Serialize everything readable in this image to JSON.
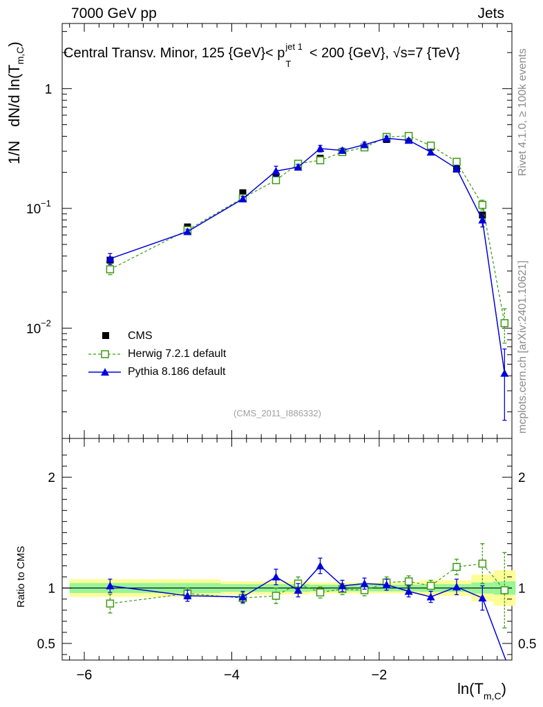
{
  "header": {
    "energy": "7000 GeV pp",
    "category": "Jets"
  },
  "title": {
    "prefix": "Central Transv. Minor, 125 {GeV}< p",
    "p_sup": "jet 1",
    "p_sub": "T",
    "suffix": " < 200 {GeV}, √s=7 {TeV}"
  },
  "watermarks": {
    "rivet": "Rivet 4.1.0, ≥ 100k events",
    "mcplots": "mcplots.cern.ch [arXiv:2401.10621]"
  },
  "analysis_id": "(CMS_2011_I886332)",
  "colors": {
    "cms": "#000000",
    "herwig": "#3a9a10",
    "pythia": "#0000dd",
    "band_inner": "#98f598",
    "band_outer": "#fdfd98"
  },
  "chart_data": [
    {
      "type": "scatter",
      "panel": "main",
      "title": "Central Transv. Minor, 125 {GeV}< p_T^{jet 1} < 200 {GeV}, √s=7 {TeV}",
      "xlabel": "ln(T_{m,C})",
      "ylabel_main": "dN/d ln(T",
      "ylabel_sub": "m,C",
      "ylabel_norm": "1/N",
      "ylabel_close": ")",
      "yscale": "log",
      "xlim": [
        -6.3,
        -0.2
      ],
      "ylim": [
        0.0012,
        3.5
      ],
      "yticks": [
        {
          "v": 1,
          "base": "1",
          "exp": ""
        },
        {
          "v": 0.1,
          "base": "10",
          "exp": "−1"
        },
        {
          "v": 0.01,
          "base": "10",
          "exp": "−2"
        }
      ],
      "x": [
        -5.65,
        -4.6,
        -3.85,
        -3.4,
        -3.1,
        -2.8,
        -2.5,
        -2.2,
        -1.9,
        -1.6,
        -1.3,
        -0.95,
        -0.6,
        -0.3
      ],
      "series": [
        {
          "name": "CMS",
          "values": [
            0.037,
            0.07,
            0.135,
            0.185,
            0.225,
            0.262,
            0.298,
            0.325,
            0.376,
            0.378,
            0.325,
            0.213,
            0.088,
            0.011
          ]
        },
        {
          "name": "Herwig 7.2.1 default",
          "values": [
            0.031,
            0.066,
            0.122,
            0.172,
            0.236,
            0.252,
            0.295,
            0.323,
            0.395,
            0.403,
            0.334,
            0.245,
            0.107,
            0.011
          ],
          "err": [
            0.003,
            0.003,
            0.004,
            0.008,
            0.007,
            0.007,
            0.008,
            0.008,
            0.009,
            0.009,
            0.009,
            0.01,
            0.01,
            0.0035
          ]
        },
        {
          "name": "Pythia 8.186 default",
          "values": [
            0.038,
            0.064,
            0.12,
            0.205,
            0.221,
            0.316,
            0.305,
            0.34,
            0.385,
            0.37,
            0.295,
            0.215,
            0.08,
            0.0042
          ],
          "err": [
            0.004,
            0.003,
            0.006,
            0.02,
            0.012,
            0.02,
            0.014,
            0.018,
            0.016,
            0.014,
            0.013,
            0.013,
            0.01,
            0.0025
          ]
        }
      ]
    },
    {
      "type": "scatter",
      "panel": "ratio",
      "ylabel": "Ratio to CMS",
      "xlabel": "ln(T_{m,C})",
      "xlim": [
        -6.3,
        -0.2
      ],
      "ylim": [
        0.35,
        2.35
      ],
      "yticks": [
        0.5,
        1,
        2
      ],
      "xticks": [
        -6,
        -4,
        -2
      ],
      "xticklabels": [
        "−6",
        "−4",
        "−2"
      ],
      "x": [
        -5.65,
        -4.6,
        -3.85,
        -3.4,
        -3.1,
        -2.8,
        -2.5,
        -2.2,
        -1.9,
        -1.6,
        -1.3,
        -0.95,
        -0.6,
        -0.3
      ],
      "series": [
        {
          "name": "Herwig 7.2.1 default",
          "values": [
            0.86,
            0.95,
            0.91,
            0.93,
            1.04,
            0.96,
            0.99,
            0.98,
            1.05,
            1.06,
            1.02,
            1.19,
            1.22,
            0.98
          ],
          "err": [
            0.085,
            0.05,
            0.05,
            0.07,
            0.06,
            0.05,
            0.05,
            0.05,
            0.05,
            0.05,
            0.05,
            0.07,
            0.18,
            0.34
          ]
        },
        {
          "name": "Pythia 8.186 default",
          "values": [
            1.02,
            0.93,
            0.92,
            1.1,
            0.98,
            1.2,
            1.02,
            1.04,
            1.03,
            0.97,
            0.92,
            1.01,
            0.91,
            0.38
          ],
          "err": [
            0.06,
            0.05,
            0.05,
            0.07,
            0.06,
            0.07,
            0.05,
            0.05,
            0.05,
            0.05,
            0.05,
            0.07,
            0.11,
            0
          ]
        }
      ],
      "band_bins": [
        {
          "lo": -6.2,
          "hi": -4.15,
          "inner": 0.045,
          "outer": 0.08
        },
        {
          "lo": -4.15,
          "hi": -2.95,
          "inner": 0.035,
          "outer": 0.06
        },
        {
          "lo": -2.95,
          "hi": -1.45,
          "inner": 0.03,
          "outer": 0.05
        },
        {
          "lo": -1.45,
          "hi": -0.75,
          "inner": 0.035,
          "outer": 0.07
        },
        {
          "lo": -0.75,
          "hi": -0.45,
          "inner": 0.05,
          "outer": 0.12
        },
        {
          "lo": -0.45,
          "hi": -0.15,
          "inner": 0.06,
          "outer": 0.16
        }
      ]
    }
  ],
  "legend": [
    {
      "label": "CMS"
    },
    {
      "label": "Herwig 7.2.1 default"
    },
    {
      "label": "Pythia 8.186 default"
    }
  ]
}
